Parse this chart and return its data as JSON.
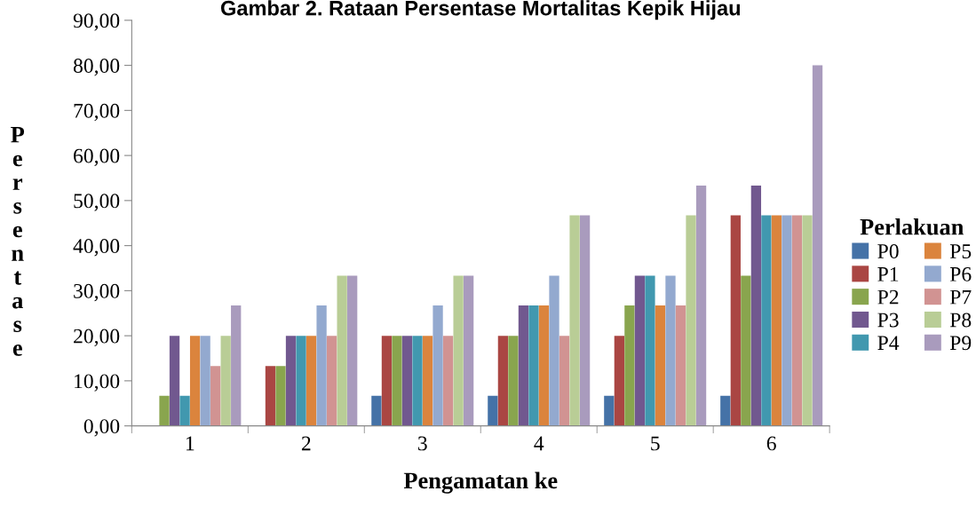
{
  "chart_data": {
    "type": "bar",
    "title": "Gambar 2. Rataan Persentase Mortalitas Kepik Hijau",
    "xlabel": "Pengamatan ke",
    "ylabel": "Persentase",
    "categories": [
      "1",
      "2",
      "3",
      "4",
      "5",
      "6"
    ],
    "series": [
      {
        "name": "P0",
        "color": "#4572a7",
        "values": [
          0,
          0,
          6.7,
          6.7,
          6.7,
          6.7
        ]
      },
      {
        "name": "P1",
        "color": "#aa4643",
        "values": [
          0,
          13.3,
          20,
          20,
          20,
          46.7
        ]
      },
      {
        "name": "P2",
        "color": "#89a54e",
        "values": [
          6.7,
          13.3,
          20,
          20,
          26.7,
          33.3
        ]
      },
      {
        "name": "P3",
        "color": "#71588f",
        "values": [
          20,
          20,
          20,
          26.7,
          33.3,
          53.3
        ]
      },
      {
        "name": "P4",
        "color": "#4198af",
        "values": [
          6.7,
          20,
          20,
          26.7,
          33.3,
          46.7
        ]
      },
      {
        "name": "P5",
        "color": "#db843d",
        "values": [
          20,
          20,
          20,
          26.7,
          26.7,
          46.7
        ]
      },
      {
        "name": "P6",
        "color": "#93a9cf",
        "values": [
          20,
          26.7,
          26.7,
          33.3,
          33.3,
          46.7
        ]
      },
      {
        "name": "P7",
        "color": "#d19392",
        "values": [
          13.3,
          20,
          20,
          20,
          26.7,
          46.7
        ]
      },
      {
        "name": "P8",
        "color": "#b9cd96",
        "values": [
          20,
          33.3,
          33.3,
          46.7,
          46.7,
          46.7
        ]
      },
      {
        "name": "P9",
        "color": "#a99bbd",
        "values": [
          26.7,
          33.3,
          33.3,
          46.7,
          53.3,
          80
        ]
      }
    ],
    "ylim": [
      0,
      90
    ],
    "yticks": [
      {
        "value": 0,
        "label": "0,00"
      },
      {
        "value": 10,
        "label": "10,00"
      },
      {
        "value": 20,
        "label": "20,00"
      },
      {
        "value": 30,
        "label": "30,00"
      },
      {
        "value": 40,
        "label": "40,00"
      },
      {
        "value": 50,
        "label": "50,00"
      },
      {
        "value": 60,
        "label": "60,00"
      },
      {
        "value": 70,
        "label": "70,00"
      },
      {
        "value": 80,
        "label": "80,00"
      },
      {
        "value": 90,
        "label": "90,00"
      }
    ],
    "legend_title": "Perlakuan",
    "legend": "right",
    "grid": false
  }
}
